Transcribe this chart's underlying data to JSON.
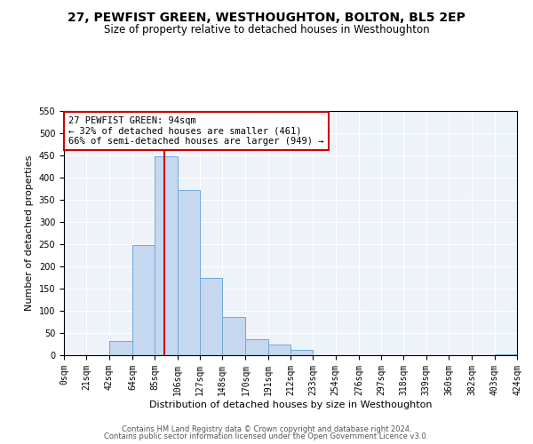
{
  "title": "27, PEWFIST GREEN, WESTHOUGHTON, BOLTON, BL5 2EP",
  "subtitle": "Size of property relative to detached houses in Westhoughton",
  "xlabel": "Distribution of detached houses by size in Westhoughton",
  "ylabel": "Number of detached properties",
  "bin_edges": [
    0,
    21,
    42,
    64,
    85,
    106,
    127,
    148,
    170,
    191,
    212,
    233,
    254,
    276,
    297,
    318,
    339,
    360,
    382,
    403,
    424
  ],
  "bin_labels": [
    "0sqm",
    "21sqm",
    "42sqm",
    "64sqm",
    "85sqm",
    "106sqm",
    "127sqm",
    "148sqm",
    "170sqm",
    "191sqm",
    "212sqm",
    "233sqm",
    "254sqm",
    "276sqm",
    "297sqm",
    "318sqm",
    "339sqm",
    "360sqm",
    "382sqm",
    "403sqm",
    "424sqm"
  ],
  "counts": [
    0,
    0,
    32,
    248,
    448,
    372,
    175,
    86,
    37,
    25,
    12,
    1,
    1,
    0,
    0,
    0,
    0,
    0,
    0,
    2
  ],
  "bar_color": "#c5d8f0",
  "bar_edge_color": "#6fa8d6",
  "property_size": 94,
  "vline_color": "#cc0000",
  "annotation_line1": "27 PEWFIST GREEN: 94sqm",
  "annotation_line2": "← 32% of detached houses are smaller (461)",
  "annotation_line3": "66% of semi-detached houses are larger (949) →",
  "annotation_box_color": "#cc0000",
  "ylim": [
    0,
    550
  ],
  "yticks": [
    0,
    50,
    100,
    150,
    200,
    250,
    300,
    350,
    400,
    450,
    500,
    550
  ],
  "footer1": "Contains HM Land Registry data © Crown copyright and database right 2024.",
  "footer2": "Contains public sector information licensed under the Open Government Licence v3.0.",
  "plot_bg_color": "#eef2f9",
  "grid_color": "#ffffff",
  "title_fontsize": 10,
  "subtitle_fontsize": 8.5,
  "tick_fontsize": 7,
  "ylabel_fontsize": 8,
  "xlabel_fontsize": 8
}
